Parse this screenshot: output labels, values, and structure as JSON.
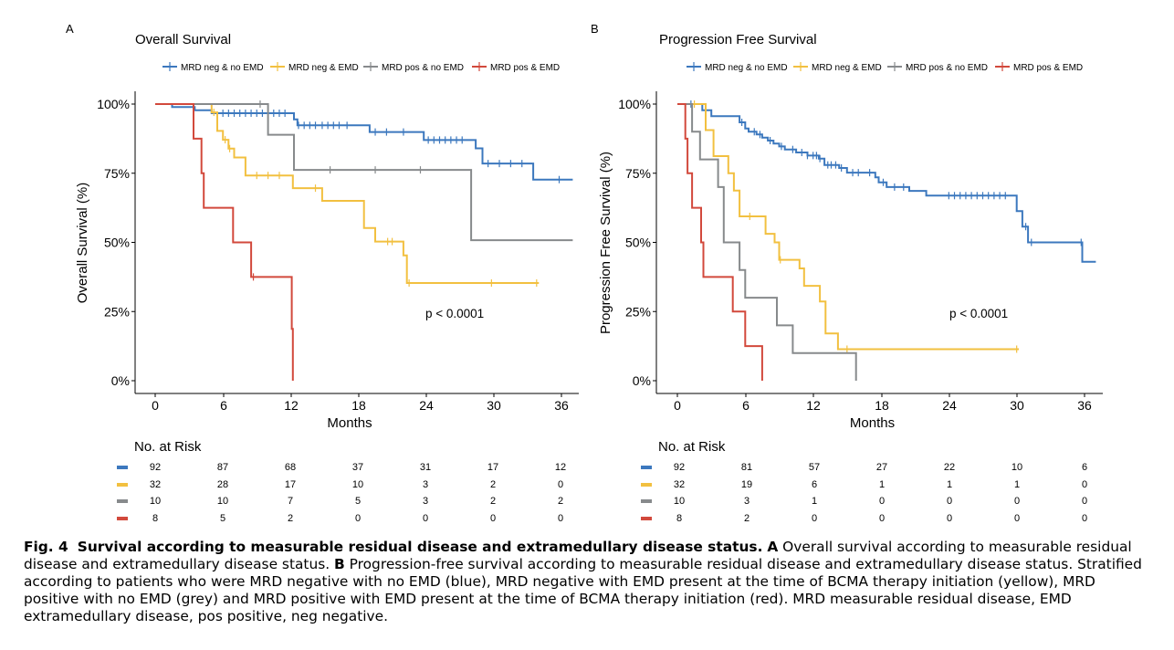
{
  "colors": {
    "blue": "#3C78BE",
    "yellow": "#F2C040",
    "grey": "#878A8C",
    "red": "#D2493C"
  },
  "chart_data": [
    {
      "type": "line",
      "panel_label": "A",
      "title": "Overall Survival",
      "xlabel": "Months",
      "ylabel": "Overall Survival (%)",
      "x_ticks": [
        "0",
        "6",
        "12",
        "18",
        "24",
        "30",
        "36"
      ],
      "y_ticks": [
        "0%",
        "25%",
        "50%",
        "75%",
        "100%"
      ],
      "xlim": [
        0,
        37
      ],
      "ylim": [
        0,
        1
      ],
      "grid": false,
      "legend_position": "top",
      "annotation": "p < 0.0001",
      "series": [
        {
          "name": "MRD neg & no EMD",
          "color": "blue",
          "x": [
            0,
            1.5,
            2,
            3.5,
            4,
            5,
            12,
            12.3,
            12.6,
            18.6,
            19,
            23.5,
            23.8,
            28,
            28.4,
            29,
            33,
            33.5,
            37
          ],
          "y": [
            1,
            0.989,
            0.989,
            0.978,
            0.978,
            0.967,
            0.967,
            0.945,
            0.923,
            0.923,
            0.899,
            0.899,
            0.87,
            0.87,
            0.84,
            0.785,
            0.785,
            0.727,
            0.727
          ],
          "censor_x": [
            6,
            6.5,
            7,
            7.5,
            8,
            8.5,
            9,
            9.5,
            10,
            10.5,
            11,
            11.5,
            12.7,
            13.2,
            13.7,
            14.2,
            14.8,
            15.3,
            15.8,
            16.3,
            17,
            19.5,
            20.5,
            22,
            24.2,
            24.7,
            25.2,
            25.7,
            26.2,
            26.7,
            27.2,
            29.5,
            30.5,
            31.5,
            32.5,
            35.8
          ]
        },
        {
          "name": "MRD neg & EMD",
          "color": "yellow",
          "x": [
            0,
            4.8,
            5,
            5.5,
            6,
            6.5,
            7,
            8,
            12,
            12.2,
            14,
            14.8,
            18,
            18.5,
            19.5,
            21.5,
            22,
            22.3,
            34
          ],
          "y": [
            1,
            1,
            0.97,
            0.903,
            0.871,
            0.839,
            0.807,
            0.742,
            0.742,
            0.696,
            0.696,
            0.65,
            0.65,
            0.552,
            0.503,
            0.503,
            0.453,
            0.353,
            0.353
          ],
          "censor_x": [
            5.2,
            6.2,
            6.6,
            9,
            10,
            11,
            14.2,
            20.6,
            21,
            22.5,
            29.8,
            33.8
          ]
        },
        {
          "name": "MRD pos & no EMD",
          "color": "grey",
          "x": [
            0,
            9.8,
            10,
            12,
            12.3,
            27.8,
            28,
            37
          ],
          "y": [
            1,
            1,
            0.889,
            0.889,
            0.762,
            0.762,
            0.508,
            0.508
          ],
          "censor_x": [
            9.3,
            15.5,
            19.5,
            23.5
          ]
        },
        {
          "name": "MRD pos & EMD",
          "color": "red",
          "x": [
            0,
            3.4,
            4.1,
            4.3,
            6.9,
            8.5,
            12,
            12.1,
            12.2
          ],
          "y": [
            1,
            0.875,
            0.75,
            0.625,
            0.5,
            0.375,
            0.375,
            0.1875,
            0
          ],
          "censor_x": [
            8.7
          ]
        }
      ]
    },
    {
      "type": "line",
      "panel_label": "B",
      "title": "Progression Free Survival",
      "xlabel": "Months",
      "ylabel": "Progression Free Survival (%)",
      "x_ticks": [
        "0",
        "6",
        "12",
        "18",
        "24",
        "30",
        "36"
      ],
      "y_ticks": [
        "0%",
        "25%",
        "50%",
        "75%",
        "100%"
      ],
      "xlim": [
        0,
        37
      ],
      "ylim": [
        0,
        1
      ],
      "grid": false,
      "legend_position": "top",
      "annotation": "p < 0.0001",
      "series": [
        {
          "name": "MRD neg & no EMD",
          "color": "blue",
          "x": [
            0,
            1.8,
            2.2,
            3,
            5,
            5.5,
            6,
            6.3,
            7,
            7.5,
            8,
            8.5,
            9,
            9.5,
            10.5,
            11.5,
            12.5,
            13,
            14.3,
            15,
            16.5,
            17.5,
            17.8,
            18.5,
            19.8,
            20.5,
            22,
            29.5,
            30,
            30.5,
            31,
            35.5,
            35.8,
            37
          ],
          "y": [
            1,
            1,
            0.978,
            0.956,
            0.956,
            0.934,
            0.912,
            0.9,
            0.89,
            0.879,
            0.868,
            0.857,
            0.847,
            0.836,
            0.825,
            0.814,
            0.803,
            0.78,
            0.769,
            0.752,
            0.752,
            0.735,
            0.717,
            0.7,
            0.7,
            0.686,
            0.669,
            0.669,
            0.613,
            0.557,
            0.5,
            0.5,
            0.43,
            0.43
          ],
          "censor_x": [
            1.2,
            5.7,
            6.8,
            7.3,
            8.2,
            9.2,
            10.2,
            11,
            11.5,
            12,
            12.3,
            12.6,
            13.3,
            13.6,
            14,
            14.5,
            15.5,
            16,
            17,
            18.2,
            19.2,
            20,
            24,
            24.5,
            25,
            25.5,
            26,
            26.5,
            27,
            27.5,
            28,
            28.5,
            29,
            30.8,
            31.3,
            35.7
          ]
        },
        {
          "name": "MRD neg & EMD",
          "color": "yellow",
          "x": [
            0,
            2,
            2.5,
            3.2,
            4.5,
            5,
            5.5,
            6,
            7.8,
            8.6,
            9,
            9.5,
            10.8,
            11.2,
            11.7,
            12.6,
            13.1,
            14.2,
            30.2
          ],
          "y": [
            1,
            1,
            0.906,
            0.812,
            0.75,
            0.687,
            0.594,
            0.594,
            0.531,
            0.5,
            0.437,
            0.437,
            0.406,
            0.343,
            0.343,
            0.286,
            0.171,
            0.114,
            0.114
          ],
          "censor_x": [
            1.5,
            6.4,
            9.1,
            15,
            30
          ]
        },
        {
          "name": "MRD pos & no EMD",
          "color": "grey",
          "x": [
            0,
            0.7,
            1.3,
            2,
            3,
            3.6,
            4.1,
            5.5,
            6,
            8.8,
            10.2,
            15.8,
            15.8
          ],
          "y": [
            1,
            1,
            0.9,
            0.8,
            0.8,
            0.7,
            0.5,
            0.4,
            0.3,
            0.2,
            0.1,
            0.1,
            0
          ],
          "censor_x": []
        },
        {
          "name": "MRD pos & EMD",
          "color": "red",
          "x": [
            0,
            0.7,
            0.9,
            1.3,
            2.1,
            2.3,
            4.9,
            6,
            7.5,
            7.5
          ],
          "y": [
            1,
            0.875,
            0.75,
            0.625,
            0.5,
            0.375,
            0.25,
            0.125,
            0.125,
            0
          ],
          "censor_x": []
        }
      ]
    }
  ],
  "risk_tables": [
    {
      "title": "No. at Risk",
      "rows": [
        {
          "color": "blue",
          "values": [
            "92",
            "87",
            "68",
            "37",
            "31",
            "17",
            "12"
          ]
        },
        {
          "color": "yellow",
          "values": [
            "32",
            "28",
            "17",
            "10",
            "3",
            "2",
            "0"
          ]
        },
        {
          "color": "grey",
          "values": [
            "10",
            "10",
            "7",
            "5",
            "3",
            "2",
            "2"
          ]
        },
        {
          "color": "red",
          "values": [
            "8",
            "5",
            "2",
            "0",
            "0",
            "0",
            "0"
          ]
        }
      ]
    },
    {
      "title": "No. at Risk",
      "rows": [
        {
          "color": "blue",
          "values": [
            "92",
            "81",
            "57",
            "27",
            "22",
            "10",
            "6"
          ]
        },
        {
          "color": "yellow",
          "values": [
            "32",
            "19",
            "6",
            "1",
            "1",
            "1",
            "0"
          ]
        },
        {
          "color": "grey",
          "values": [
            "10",
            "3",
            "1",
            "0",
            "0",
            "0",
            "0"
          ]
        },
        {
          "color": "red",
          "values": [
            "8",
            "2",
            "0",
            "0",
            "0",
            "0",
            "0"
          ]
        }
      ]
    }
  ],
  "caption": {
    "fig_label": "Fig. 4",
    "title": "Survival according to measurable residual disease and extramedullary disease status.",
    "label_a": "A",
    "text_a": " Overall survival according to measurable residual disease and extramedullary disease status. ",
    "label_b": "B",
    "text_b": " Progression-free survival according to measurable residual disease and extramedullary disease status. Stratified according to patients who were MRD negative with no EMD (blue), MRD negative with EMD present at the time of BCMA therapy initiation (yellow), MRD positive with no EMD (grey) and MRD positive with EMD present at the time of BCMA therapy initiation (red). MRD measurable residual disease, EMD extramedullary disease, pos positive, neg negative."
  }
}
